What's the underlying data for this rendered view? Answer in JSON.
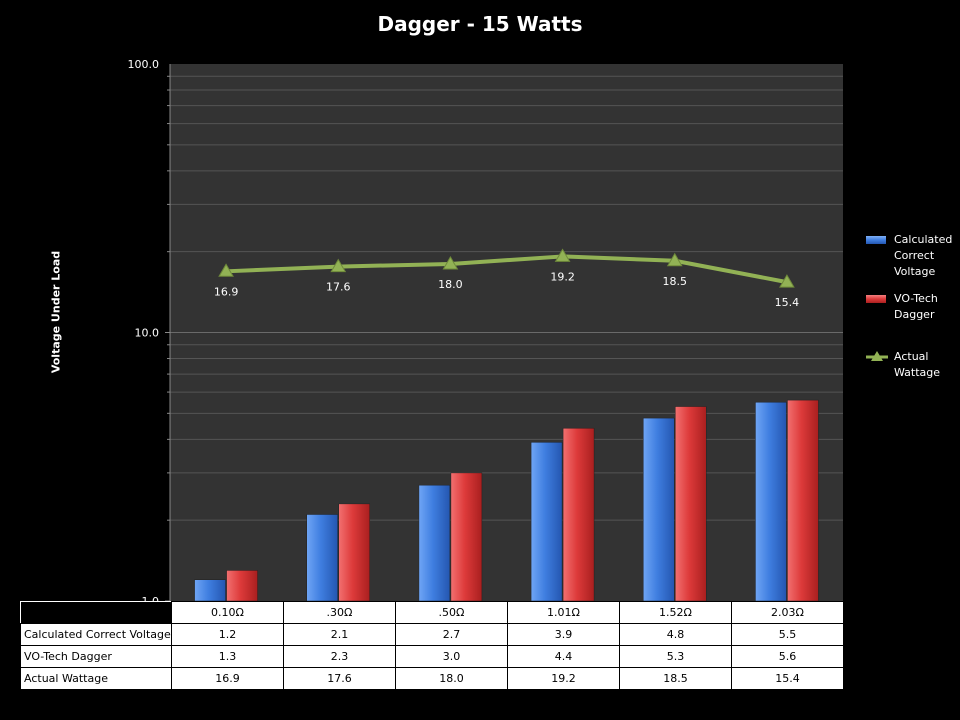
{
  "chart_data": {
    "type": "bar",
    "title": "Dagger - 15 Watts",
    "xlabel": "",
    "ylabel": "Voltage Under Load",
    "yscale": "log",
    "ylim": [
      1.0,
      100.0
    ],
    "y_ticks": [
      "1.0",
      "10.0",
      "100.0"
    ],
    "grid": true,
    "legend_position": "right",
    "categories": [
      "0.10Ω",
      ".30Ω",
      ".50Ω",
      "1.01Ω",
      "1.52Ω",
      "2.03Ω"
    ],
    "series": [
      {
        "name": "Calculated Correct Voltage",
        "legend_label": [
          "Calculated",
          "Correct",
          "Voltage"
        ],
        "type": "bar",
        "color": "#3f7ee0",
        "values": [
          1.2,
          2.1,
          2.7,
          3.9,
          4.8,
          5.5
        ],
        "table_values": [
          "1.2",
          "2.1",
          "2.7",
          "3.9",
          "4.8",
          "5.5"
        ]
      },
      {
        "name": "VO-Tech Dagger",
        "legend_label": [
          "VO-Tech",
          "Dagger"
        ],
        "type": "bar",
        "color": "#dd3a3a",
        "values": [
          1.3,
          2.3,
          3.0,
          4.4,
          5.3,
          5.6
        ],
        "table_values": [
          "1.3",
          "2.3",
          "3.0",
          "4.4",
          "5.3",
          "5.6"
        ]
      },
      {
        "name": "Actual Wattage",
        "legend_label": [
          "Actual",
          "Wattage"
        ],
        "type": "line",
        "marker": "triangle",
        "color": "#92b255",
        "values": [
          16.9,
          17.6,
          18.0,
          19.2,
          18.5,
          15.4
        ],
        "data_labels": [
          "16.9",
          "17.6",
          "18.0",
          "19.2",
          "18.5",
          "15.4"
        ],
        "table_values": [
          "16.9",
          "17.6",
          "18.0",
          "19.2",
          "18.5",
          "15.4"
        ]
      }
    ]
  }
}
